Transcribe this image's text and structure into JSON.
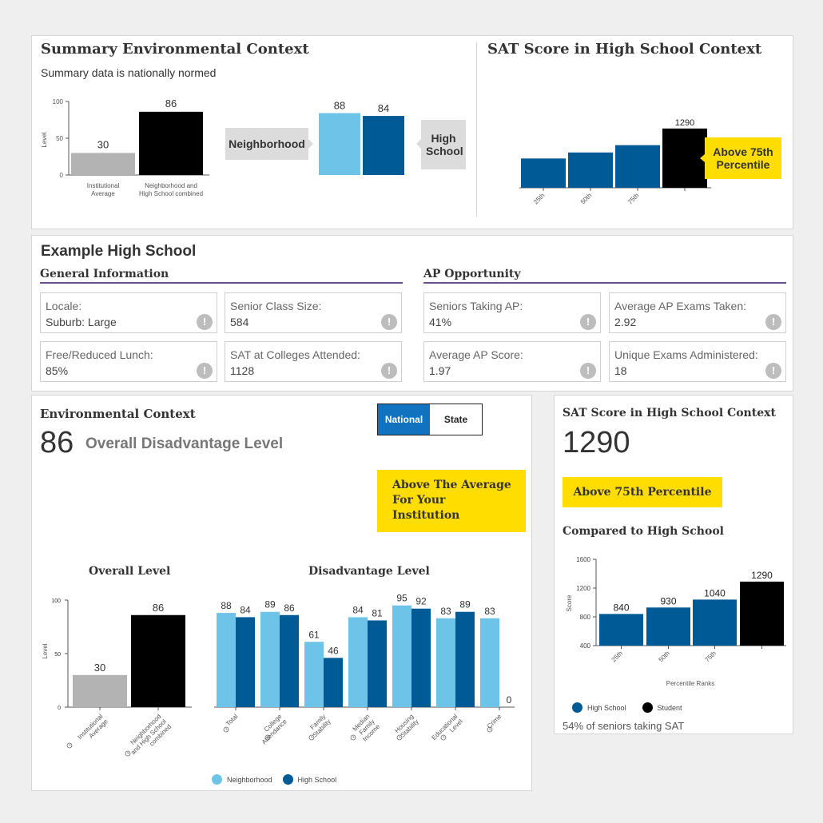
{
  "summary": {
    "title": "Summary Environmental Context",
    "subtitle": "Summary data is nationally normed",
    "neighborhood_label": "Neighborhood",
    "high_school_label": "High School",
    "neighborhood_value": "88",
    "high_school_value": "84",
    "neighborhood_value_num": 88,
    "high_school_value_num": 84,
    "colors": {
      "neighborhood": "#6ec3e8",
      "high_school": "#005a96"
    }
  },
  "summary_sat": {
    "title": "SAT Score in High School Context",
    "badge": "Above 75th Percentile"
  },
  "school": {
    "name": "Example High School",
    "general_heading": "General Information",
    "ap_heading": "AP Opportunity",
    "general_fields": [
      {
        "label": "Locale:",
        "value": "Suburb: Large"
      },
      {
        "label": "Senior Class Size:",
        "value": "584"
      },
      {
        "label": "Free/Reduced Lunch:",
        "value": "85%"
      },
      {
        "label": "SAT at Colleges Attended:",
        "value": "1128"
      }
    ],
    "ap_fields": [
      {
        "label": "Seniors Taking AP:",
        "value": "41%"
      },
      {
        "label": "Average AP Exams Taken:",
        "value": "2.92"
      },
      {
        "label": "Average AP Score:",
        "value": "1.97"
      },
      {
        "label": "Unique Exams Administered:",
        "value": "18"
      }
    ],
    "info_icon": "!"
  },
  "env": {
    "title": "Environmental Context",
    "level_number": "86",
    "level_label": "Overall Disadvantage Level",
    "toggle": {
      "national": "National",
      "state": "State"
    },
    "badge": "Above The Average For Your Institution",
    "overall_title": "Overall Level",
    "disadvantage_title": "Disadvantage Level",
    "legend": {
      "neighborhood": "Neighborhood",
      "high_school": "High School"
    }
  },
  "sat": {
    "title": "SAT Score in High School Context",
    "score": "1290",
    "badge": "Above 75th Percentile",
    "compared_title": "Compared to High School",
    "legend": {
      "high_school": "High School",
      "student": "Student"
    },
    "footnote": "54% of seniors taking SAT"
  },
  "chart_data": [
    {
      "id": "summary_level",
      "type": "bar",
      "ylabel": "Level",
      "ylim": [
        0,
        100
      ],
      "yticks": [
        0,
        50,
        100
      ],
      "categories": [
        "Institutional Average",
        "Neighborhood and High School combined"
      ],
      "values": [
        30,
        86
      ],
      "colors": [
        "#b3b3b3",
        "#000000"
      ]
    },
    {
      "id": "summary_sat",
      "type": "bar",
      "categories": [
        "25th",
        "50th",
        "75th",
        ""
      ],
      "values": [
        840,
        930,
        1040,
        1290
      ],
      "ylim": [
        400,
        1600
      ],
      "data_labels": [
        "",
        "",
        "",
        "1290"
      ],
      "colors": [
        "#005a96",
        "#005a96",
        "#005a96",
        "#000000"
      ]
    },
    {
      "id": "overall_level",
      "type": "bar",
      "title": "Overall Level",
      "ylabel": "Level",
      "ylim": [
        0,
        100
      ],
      "yticks": [
        0,
        50,
        100
      ],
      "categories": [
        "Institutional Average",
        "Neighborhood and High School combined"
      ],
      "values": [
        30,
        86
      ],
      "colors": [
        "#b3b3b3",
        "#000000"
      ]
    },
    {
      "id": "disadvantage_level",
      "type": "bar",
      "title": "Disadvantage Level",
      "ylim": [
        0,
        100
      ],
      "categories": [
        "Total",
        "College Attendance",
        "Family Stability",
        "Median Family Income",
        "Housing Stability",
        "Educational Level",
        "Crime"
      ],
      "series": [
        {
          "name": "Neighborhood",
          "values": [
            88,
            89,
            61,
            84,
            95,
            83,
            83
          ],
          "color": "#6ec3e8"
        },
        {
          "name": "High School",
          "values": [
            84,
            86,
            46,
            81,
            92,
            89,
            0
          ],
          "color": "#005a96"
        }
      ]
    },
    {
      "id": "compared_sat",
      "type": "bar",
      "title": "Compared to High School",
      "xlabel": "Percentile Ranks",
      "ylabel": "Score",
      "ylim": [
        400,
        1600
      ],
      "yticks": [
        400,
        800,
        1200,
        1600
      ],
      "categories": [
        "25th",
        "50th",
        "75th",
        ""
      ],
      "values": [
        840,
        930,
        1040,
        1290
      ],
      "colors": [
        "#005a96",
        "#005a96",
        "#005a96",
        "#000000"
      ]
    }
  ]
}
